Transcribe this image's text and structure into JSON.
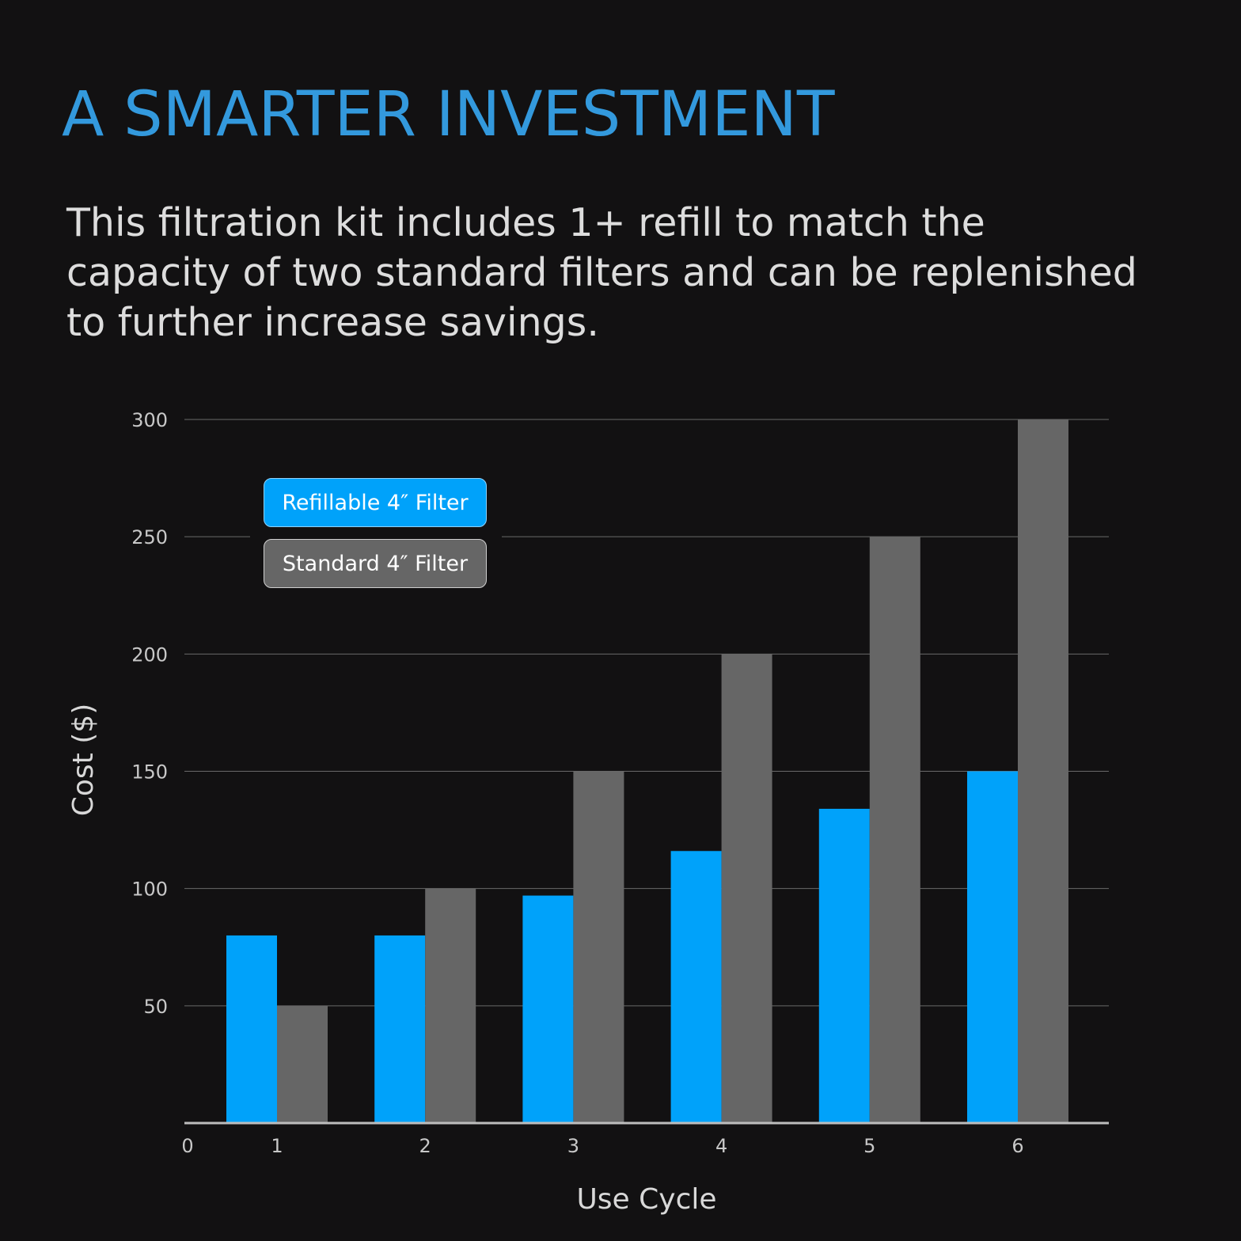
{
  "headline": "A SMARTER INVESTMENT",
  "intro": "This filtration kit includes 1+ refill to match the capacity of two standard filters and can be replenished to further increase savings.",
  "colors": {
    "background": "#121112",
    "headline": "#3399dd",
    "refillable": "#00a2fa",
    "standard": "#666666",
    "grid": "#6a6a6a",
    "axis_text": "#c8c8c8"
  },
  "legend": {
    "refillable": "Refillable 4″ Filter",
    "standard": "Standard 4″ Filter"
  },
  "chart_data": {
    "type": "bar",
    "xlabel": "Use Cycle",
    "ylabel": "Cost ($)",
    "x_origin_label": "0",
    "categories": [
      "1",
      "2",
      "3",
      "4",
      "5",
      "6"
    ],
    "series": [
      {
        "name": "Refillable 4″ Filter",
        "values": [
          80,
          80,
          97,
          116,
          134,
          150
        ]
      },
      {
        "name": "Standard 4″ Filter",
        "values": [
          50,
          100,
          150,
          200,
          250,
          300
        ]
      }
    ],
    "yticks": [
      50,
      100,
      150,
      200,
      250,
      300
    ],
    "ylim": [
      0,
      300
    ],
    "grid": true,
    "legend_position": "top-left"
  }
}
